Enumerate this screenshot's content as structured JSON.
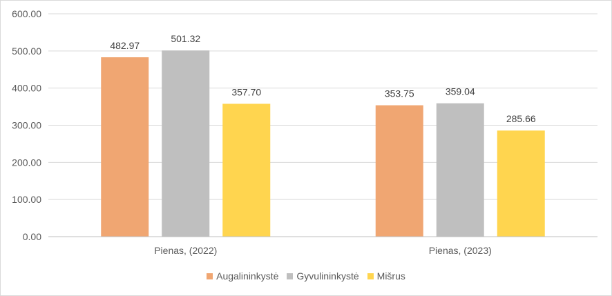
{
  "chart_data": {
    "type": "bar",
    "categories": [
      "Pienas,  (2022)",
      "Pienas,  (2023)"
    ],
    "series": [
      {
        "name": "Augalininkystė",
        "color": "#f0a672",
        "values": [
          482.97,
          353.75
        ],
        "labels": [
          "482.97",
          "353.75"
        ]
      },
      {
        "name": "Gyvulininkystė",
        "color": "#bfbfbf",
        "values": [
          501.32,
          359.04
        ],
        "labels": [
          "501.32",
          "359.04"
        ]
      },
      {
        "name": "Mišrus",
        "color": "#ffd54f",
        "values": [
          357.7,
          285.66
        ],
        "labels": [
          "357.70",
          "285.66"
        ]
      }
    ],
    "ylim": [
      0,
      600
    ],
    "yticks": [
      "0.00",
      "100.00",
      "200.00",
      "300.00",
      "400.00",
      "500.00",
      "600.00"
    ],
    "grid": true,
    "legend_position": "bottom",
    "gridline_color": "#d9d9d9",
    "axis_color": "#bfbfbf"
  }
}
